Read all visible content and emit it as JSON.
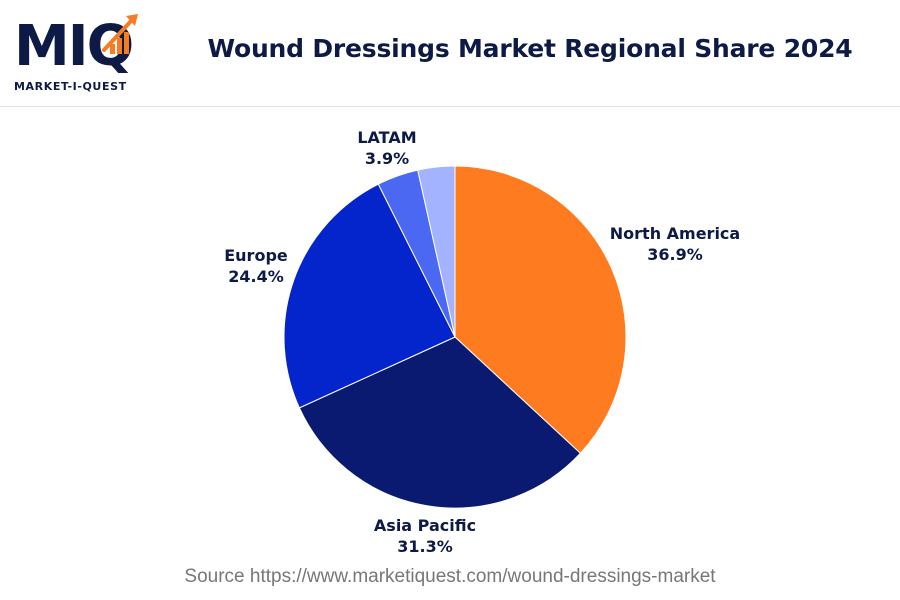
{
  "header": {
    "logo_text": "MIQ",
    "logo_wordmark": "MARKET-I-QUEST",
    "title": "Wound Dressings Market Regional Share 2024"
  },
  "colors": {
    "north_america": "#ff7b1f",
    "asia_pacific": "#0a1a70",
    "europe": "#0525cc",
    "latam": "#4a68f2",
    "other": "#a3b3ff",
    "text": "#0d1a45",
    "accent": "#f57c20"
  },
  "chart_data": {
    "type": "pie",
    "title": "Wound Dressings Market Regional Share 2024",
    "start": "12 o'clock",
    "direction": "clockwise",
    "slices": [
      {
        "label": "North America",
        "value": 36.9,
        "display": "36.9%",
        "color": "#ff7b1f"
      },
      {
        "label": "Asia Pacific",
        "value": 31.3,
        "display": "31.3%",
        "color": "#0a1a70"
      },
      {
        "label": "Europe",
        "value": 24.4,
        "display": "24.4%",
        "color": "#0525cc"
      },
      {
        "label": "LATAM",
        "value": 3.9,
        "display": "3.9%",
        "color": "#4a68f2"
      },
      {
        "label": "",
        "value": 3.5,
        "display": "",
        "color": "#a3b3ff"
      }
    ]
  },
  "footer": {
    "source": "Source https://www.marketiquest.com/wound-dressings-market"
  }
}
